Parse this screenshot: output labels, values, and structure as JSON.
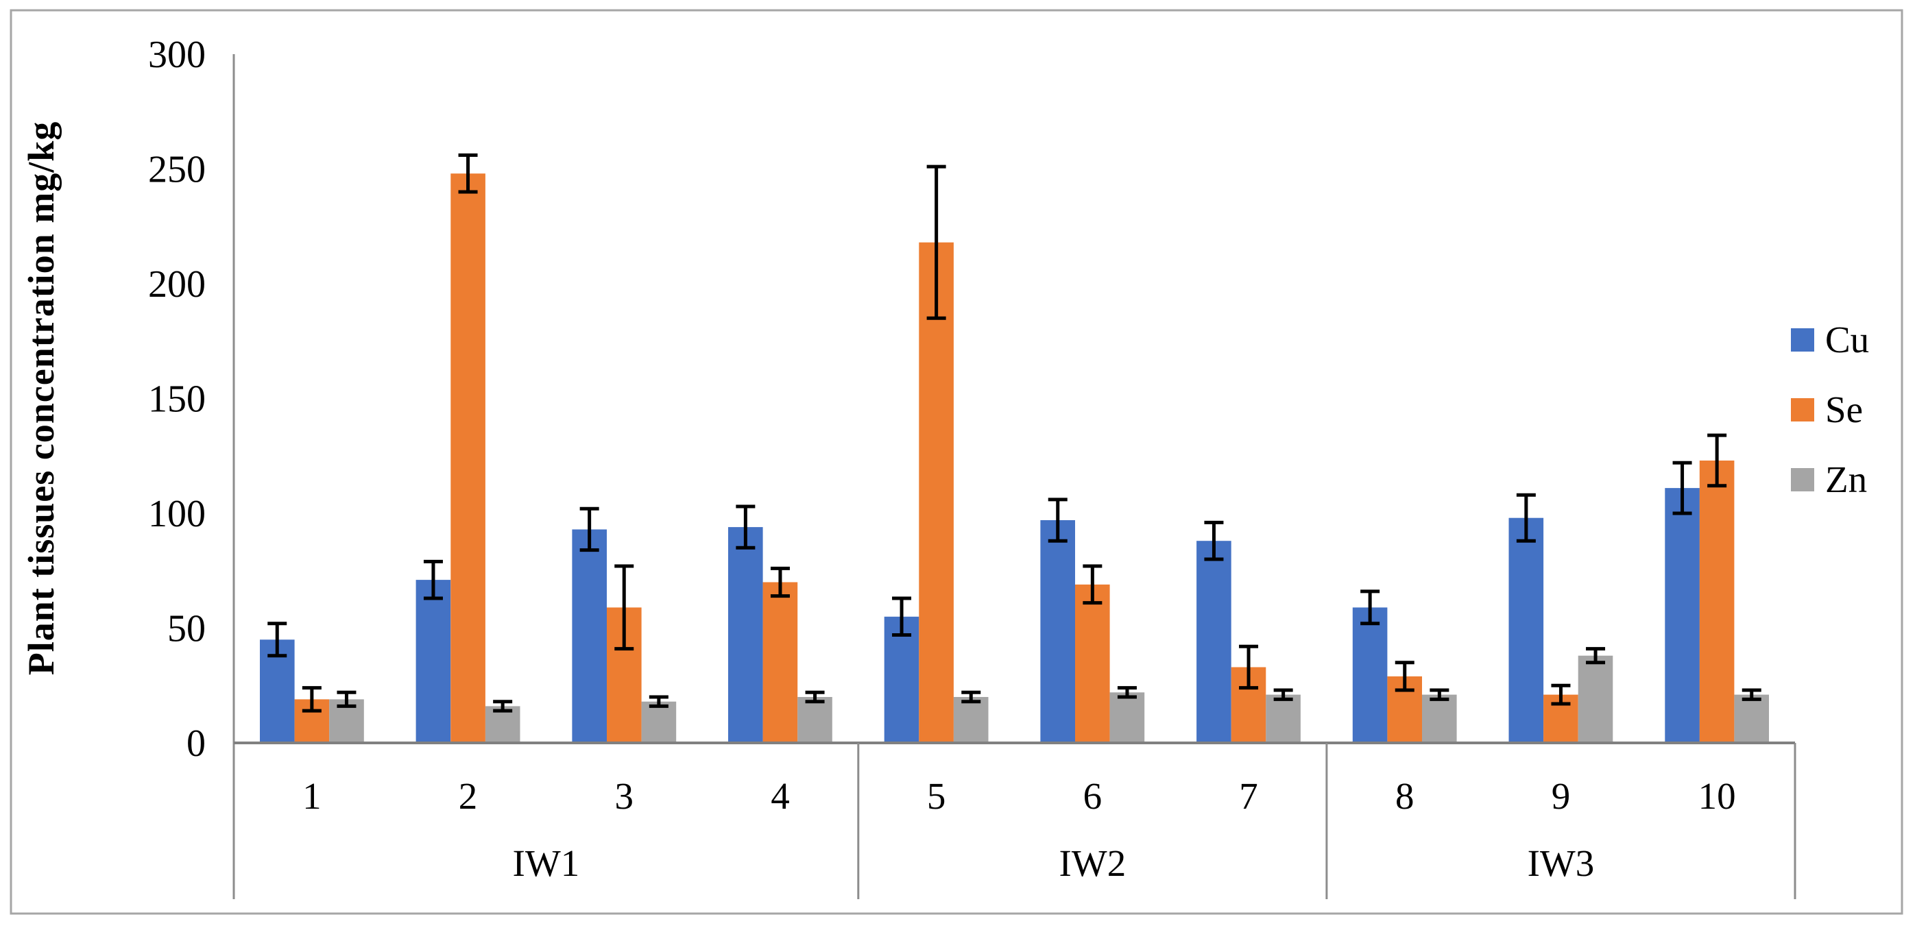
{
  "figure": {
    "description": "Clustered column chart with error bars showing Cu, Se and Zn concentrations in plant tissues for samples 1-10 grouped by irrigation water IW1, IW2, IW3"
  },
  "y_axis": {
    "title": "Plant tissues concentration mg/kg",
    "tick_labels": [
      "0",
      "50",
      "100",
      "150",
      "200",
      "250",
      "300"
    ]
  },
  "x_axis": {
    "category_labels": [
      "1",
      "2",
      "3",
      "4",
      "5",
      "6",
      "7",
      "8",
      "9",
      "10"
    ],
    "group_labels": [
      "IW1",
      "IW2",
      "IW3"
    ]
  },
  "legend_items": [
    "Cu",
    "Se",
    "Zn"
  ],
  "chart_data": {
    "type": "bar",
    "title": "",
    "xlabel": "",
    "ylabel": "Plant tissues concentration mg/kg",
    "ylim": [
      0,
      300
    ],
    "y_ticks": [
      0,
      50,
      100,
      150,
      200,
      250,
      300
    ],
    "grid": false,
    "legend_position": "right",
    "error_bars": true,
    "categories": [
      "1",
      "2",
      "3",
      "4",
      "5",
      "6",
      "7",
      "8",
      "9",
      "10"
    ],
    "category_groups": [
      {
        "name": "IW1",
        "categories": [
          "1",
          "2",
          "3",
          "4"
        ]
      },
      {
        "name": "IW2",
        "categories": [
          "5",
          "6",
          "7"
        ]
      },
      {
        "name": "IW3",
        "categories": [
          "8",
          "9",
          "10"
        ]
      }
    ],
    "series": [
      {
        "name": "Cu",
        "color": "#4472C4",
        "values": [
          45,
          71,
          93,
          94,
          55,
          97,
          88,
          59,
          98,
          111
        ],
        "error": [
          7,
          8,
          9,
          9,
          8,
          9,
          8,
          7,
          10,
          11
        ]
      },
      {
        "name": "Se",
        "color": "#ED7D31",
        "values": [
          19,
          248,
          59,
          70,
          218,
          69,
          33,
          29,
          21,
          123
        ],
        "error": [
          5,
          8,
          18,
          6,
          33,
          8,
          9,
          6,
          4,
          11
        ]
      },
      {
        "name": "Zn",
        "color": "#A5A5A5",
        "values": [
          19,
          16,
          18,
          20,
          20,
          22,
          21,
          21,
          38,
          21
        ],
        "error": [
          3,
          2,
          2,
          2,
          2,
          2,
          2,
          2,
          3,
          2
        ]
      }
    ],
    "error_bar_color": "#000000"
  },
  "colors": {
    "axis_line": "#8C8C8C",
    "zero_line": "#808080",
    "outer_border": "#A6A6A6",
    "background": "#FFFFFF",
    "text": "#000000"
  }
}
